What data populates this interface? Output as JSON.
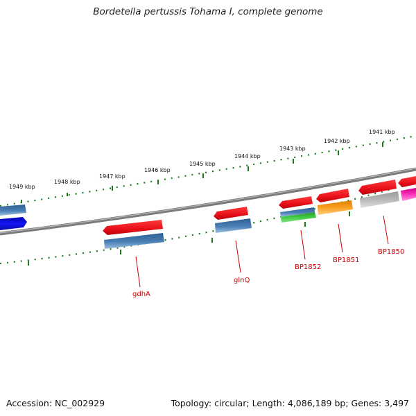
{
  "title": "Bordetella pertussis Tohama I, complete genome",
  "accession": "Accession: NC_002929",
  "summary": "Topology: circular; Length: 4,086,189 bp; Genes: 3,497",
  "ruler_labels": [
    "1949 kbp",
    "1948 kbp",
    "1947 kbp",
    "1946 kbp",
    "1945 kbp",
    "1944 kbp",
    "1943 kbp",
    "1942 kbp",
    "1941 kbp"
  ],
  "gene_labels": [
    "gdhA",
    "glnQ",
    "BP1852",
    "BP1851",
    "BP1850"
  ],
  "colors": {
    "backbone": "#808080",
    "ruler_ticks": "#1a7a1a",
    "gene_red": "#e8101a",
    "gene_blue": "#4a7fb5",
    "gene_darkblue": "#0a0aee",
    "gene_green": "#33bb33",
    "gene_orange": "#f29100",
    "gene_gray": "#b0b0b0",
    "gene_magenta": "#ee1199",
    "label": "#cc0000"
  }
}
